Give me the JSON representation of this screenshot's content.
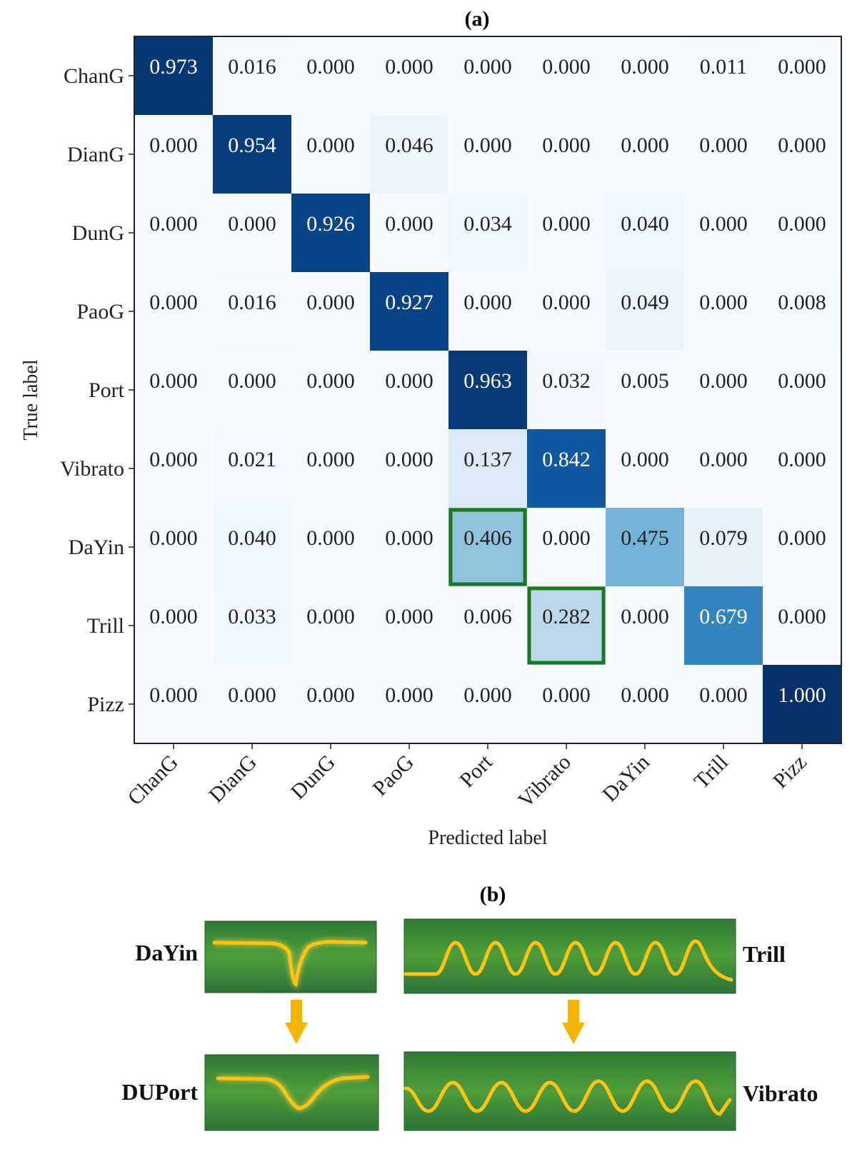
{
  "panel_a_label": "(a)",
  "panel_b_label": "(b)",
  "chart_data": {
    "type": "heatmap",
    "title": "(a)",
    "xlabel": "Predicted label",
    "ylabel": "True label",
    "x_categories": [
      "ChanG",
      "DianG",
      "DunG",
      "PaoG",
      "Port",
      "Vibrato",
      "DaYin",
      "Trill",
      "Pizz"
    ],
    "y_categories": [
      "ChanG",
      "DianG",
      "DunG",
      "PaoG",
      "Port",
      "Vibrato",
      "DaYin",
      "Trill",
      "Pizz"
    ],
    "values": [
      [
        0.973,
        0.016,
        0.0,
        0.0,
        0.0,
        0.0,
        0.0,
        0.011,
        0.0
      ],
      [
        0.0,
        0.954,
        0.0,
        0.046,
        0.0,
        0.0,
        0.0,
        0.0,
        0.0
      ],
      [
        0.0,
        0.0,
        0.926,
        0.0,
        0.034,
        0.0,
        0.04,
        0.0,
        0.0
      ],
      [
        0.0,
        0.016,
        0.0,
        0.927,
        0.0,
        0.0,
        0.049,
        0.0,
        0.008
      ],
      [
        0.0,
        0.0,
        0.0,
        0.0,
        0.963,
        0.032,
        0.005,
        0.0,
        0.0
      ],
      [
        0.0,
        0.021,
        0.0,
        0.0,
        0.137,
        0.842,
        0.0,
        0.0,
        0.0
      ],
      [
        0.0,
        0.04,
        0.0,
        0.0,
        0.406,
        0.0,
        0.475,
        0.079,
        0.0
      ],
      [
        0.0,
        0.033,
        0.0,
        0.0,
        0.006,
        0.282,
        0.0,
        0.679,
        0.0
      ],
      [
        0.0,
        0.0,
        0.0,
        0.0,
        0.0,
        0.0,
        0.0,
        0.0,
        1.0
      ]
    ],
    "value_format": "0.000",
    "colormap": "Blues",
    "vmin": 0,
    "vmax": 1,
    "highlighted_cells": [
      {
        "row": "DaYin",
        "col": "Port",
        "color": "#1a7a1a"
      },
      {
        "row": "Trill",
        "col": "Vibrato",
        "color": "#1a7a1a"
      }
    ]
  },
  "panel_b": {
    "rows": [
      {
        "left_label": "DaYin",
        "right_label": "Trill"
      },
      {
        "left_label": "DUPort",
        "right_label": "Vibrato"
      }
    ],
    "arrow_color": "#f5b400",
    "curve_color": "#ffc20e",
    "spectrogram_color": "#3c8c3c"
  }
}
